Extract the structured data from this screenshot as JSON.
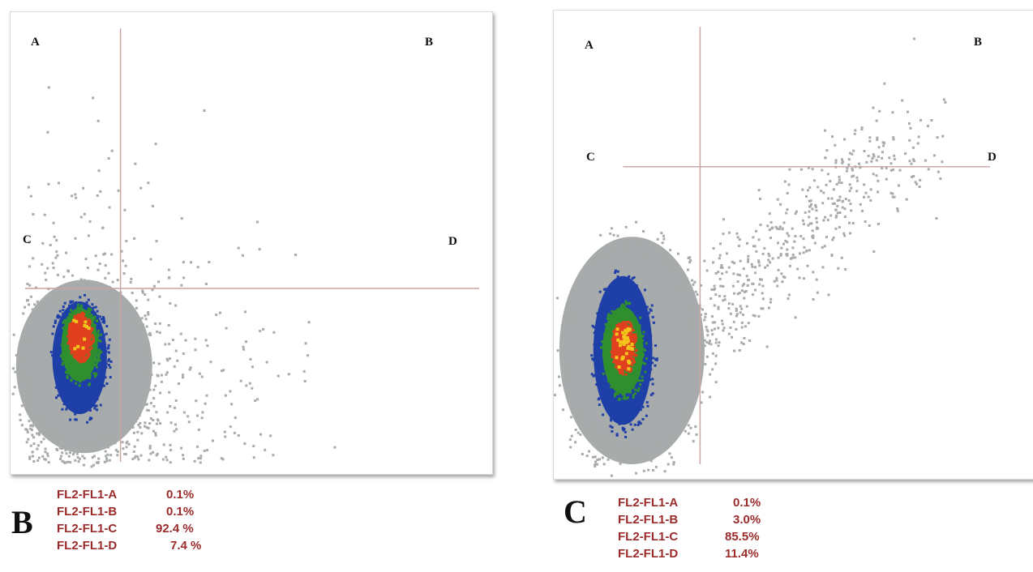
{
  "chart_data": [
    {
      "type": "scatter",
      "panel_label": "B",
      "quadrant_labels": [
        "A",
        "B",
        "C",
        "D"
      ],
      "gates": {
        "vertical_x": 0.21,
        "horizontal_y": 0.4
      },
      "xlim": [
        0,
        1
      ],
      "ylim": [
        0,
        1
      ],
      "stats": [
        {
          "label": "FL2-FL1-A",
          "value": "0.1%"
        },
        {
          "label": "FL2-FL1-B",
          "value": "0.1%"
        },
        {
          "label": "FL2-FL1-C",
          "value": "92.4 %"
        },
        {
          "label": "FL2-FL1-D",
          "value": "7.4 %"
        }
      ],
      "density_clusters": [
        {
          "level": "low",
          "cx": 0.13,
          "cy": 0.22,
          "rx": 0.15,
          "ry": 0.2
        },
        {
          "level": "medium",
          "cx": 0.12,
          "cy": 0.24,
          "rx": 0.06,
          "ry": 0.13
        },
        {
          "level": "high",
          "cx": 0.12,
          "cy": 0.27,
          "rx": 0.04,
          "ry": 0.085
        },
        {
          "level": "very-high",
          "cx": 0.12,
          "cy": 0.29,
          "rx": 0.025,
          "ry": 0.05
        }
      ]
    },
    {
      "type": "scatter",
      "panel_label": "C",
      "quadrant_labels": [
        "A",
        "B",
        "C",
        "D"
      ],
      "gates": {
        "vertical_x": 0.29,
        "horizontal_y": 0.68
      },
      "xlim": [
        0,
        1
      ],
      "ylim": [
        0,
        1
      ],
      "stats": [
        {
          "label": "FL2-FL1-A",
          "value": "0.1%"
        },
        {
          "label": "FL2-FL1-B",
          "value": "3.0%"
        },
        {
          "label": "FL2-FL1-C",
          "value": "85.5%"
        },
        {
          "label": "FL2-FL1-D",
          "value": "11.4%"
        }
      ],
      "density_clusters": [
        {
          "level": "low",
          "cx": 0.14,
          "cy": 0.26,
          "rx": 0.16,
          "ry": 0.26
        },
        {
          "level": "medium",
          "cx": 0.12,
          "cy": 0.26,
          "rx": 0.065,
          "ry": 0.17
        },
        {
          "level": "high",
          "cx": 0.12,
          "cy": 0.26,
          "rx": 0.045,
          "ry": 0.1
        },
        {
          "level": "very-high",
          "cx": 0.12,
          "cy": 0.27,
          "rx": 0.025,
          "ry": 0.055
        }
      ]
    }
  ],
  "colors": {
    "gate_line": "#c9a2a2",
    "density_low": "#a8abab",
    "density_medium": "#1f3fa8",
    "density_high": "#2f8f2f",
    "density_very_high": "#e0401e",
    "density_peak": "#f2c41c",
    "stat_text": "#9b2b2b"
  }
}
